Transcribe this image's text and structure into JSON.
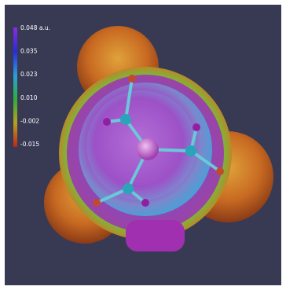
{
  "colorbar": {
    "labels": [
      "0.048 a.u.",
      "0.035",
      "0.023",
      "0.010",
      "-0.002",
      "-0.015"
    ]
  }
}
